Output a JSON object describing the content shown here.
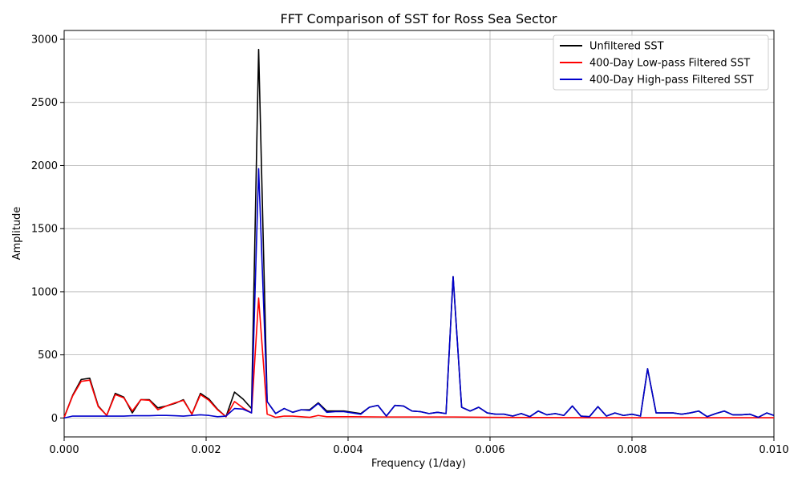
{
  "chart_data": {
    "type": "line",
    "title": "FFT Comparison of SST for Ross Sea Sector",
    "xlabel": "Frequency (1/day)",
    "ylabel": "Amplitude",
    "xlim": [
      0.0,
      0.01
    ],
    "ylim": [
      -150,
      3070
    ],
    "xticks": [
      0.0,
      0.002,
      0.004,
      0.006,
      0.008,
      0.01
    ],
    "xtick_labels": [
      "0.000",
      "0.002",
      "0.004",
      "0.006",
      "0.008",
      "0.010"
    ],
    "yticks": [
      0,
      500,
      1000,
      1500,
      2000,
      2500,
      3000
    ],
    "ytick_labels": [
      "0",
      "500",
      "1000",
      "1500",
      "2000",
      "2500",
      "3000"
    ],
    "grid": true,
    "legend_position": "top-right",
    "series": [
      {
        "name": "Unfiltered SST",
        "color": "#000000",
        "points": [
          [
            0.0,
            5
          ],
          [
            0.00012,
            180
          ],
          [
            0.00024,
            305
          ],
          [
            0.00036,
            315
          ],
          [
            0.00048,
            95
          ],
          [
            0.0006,
            20
          ],
          [
            0.00072,
            195
          ],
          [
            0.00084,
            165
          ],
          [
            0.00096,
            40
          ],
          [
            0.00108,
            145
          ],
          [
            0.0012,
            145
          ],
          [
            0.00132,
            80
          ],
          [
            0.00144,
            95
          ],
          [
            0.00156,
            115
          ],
          [
            0.00168,
            145
          ],
          [
            0.0018,
            30
          ],
          [
            0.00192,
            195
          ],
          [
            0.00204,
            150
          ],
          [
            0.00216,
            70
          ],
          [
            0.00228,
            10
          ],
          [
            0.0024,
            205
          ],
          [
            0.00252,
            150
          ],
          [
            0.00264,
            75
          ],
          [
            0.00274,
            2920
          ],
          [
            0.00286,
            130
          ],
          [
            0.00298,
            35
          ],
          [
            0.0031,
            75
          ],
          [
            0.00322,
            45
          ],
          [
            0.00334,
            65
          ],
          [
            0.00346,
            65
          ],
          [
            0.00358,
            120
          ],
          [
            0.0037,
            55
          ],
          [
            0.00382,
            55
          ],
          [
            0.00394,
            55
          ],
          [
            0.00406,
            45
          ],
          [
            0.00418,
            35
          ],
          [
            0.0043,
            85
          ],
          [
            0.00442,
            100
          ],
          [
            0.00454,
            15
          ],
          [
            0.00466,
            100
          ],
          [
            0.00478,
            95
          ],
          [
            0.0049,
            55
          ],
          [
            0.00502,
            50
          ],
          [
            0.00514,
            35
          ],
          [
            0.00526,
            45
          ],
          [
            0.00538,
            35
          ],
          [
            0.00548,
            1120
          ],
          [
            0.0056,
            85
          ],
          [
            0.00572,
            55
          ],
          [
            0.00584,
            85
          ],
          [
            0.00596,
            40
          ],
          [
            0.00608,
            30
          ],
          [
            0.0062,
            30
          ],
          [
            0.00632,
            15
          ],
          [
            0.00644,
            35
          ],
          [
            0.00656,
            10
          ],
          [
            0.00668,
            55
          ],
          [
            0.0068,
            25
          ],
          [
            0.00692,
            35
          ],
          [
            0.00704,
            20
          ],
          [
            0.00716,
            95
          ],
          [
            0.00728,
            15
          ],
          [
            0.0074,
            10
          ],
          [
            0.00752,
            90
          ],
          [
            0.00764,
            15
          ],
          [
            0.00776,
            40
          ],
          [
            0.00788,
            20
          ],
          [
            0.008,
            30
          ],
          [
            0.00812,
            15
          ],
          [
            0.00822,
            390
          ],
          [
            0.00834,
            40
          ],
          [
            0.00846,
            40
          ],
          [
            0.00858,
            40
          ],
          [
            0.0087,
            30
          ],
          [
            0.00882,
            40
          ],
          [
            0.00894,
            55
          ],
          [
            0.00906,
            10
          ],
          [
            0.00918,
            35
          ],
          [
            0.0093,
            55
          ],
          [
            0.00942,
            25
          ],
          [
            0.00954,
            25
          ],
          [
            0.00966,
            30
          ],
          [
            0.00978,
            5
          ],
          [
            0.0099,
            40
          ],
          [
            0.01,
            20
          ]
        ]
      },
      {
        "name": "400-Day Low-pass Filtered SST",
        "color": "#ff0000",
        "points": [
          [
            0.0,
            5
          ],
          [
            0.00012,
            175
          ],
          [
            0.00024,
            290
          ],
          [
            0.00036,
            300
          ],
          [
            0.00048,
            90
          ],
          [
            0.0006,
            20
          ],
          [
            0.00072,
            185
          ],
          [
            0.00084,
            160
          ],
          [
            0.00096,
            55
          ],
          [
            0.00108,
            145
          ],
          [
            0.0012,
            140
          ],
          [
            0.00132,
            65
          ],
          [
            0.00144,
            95
          ],
          [
            0.00156,
            120
          ],
          [
            0.00168,
            140
          ],
          [
            0.0018,
            30
          ],
          [
            0.00192,
            185
          ],
          [
            0.00204,
            140
          ],
          [
            0.00216,
            65
          ],
          [
            0.00228,
            10
          ],
          [
            0.0024,
            130
          ],
          [
            0.00252,
            80
          ],
          [
            0.00264,
            40
          ],
          [
            0.00274,
            950
          ],
          [
            0.00286,
            30
          ],
          [
            0.00298,
            5
          ],
          [
            0.0031,
            15
          ],
          [
            0.00322,
            15
          ],
          [
            0.00334,
            10
          ],
          [
            0.00346,
            5
          ],
          [
            0.00358,
            20
          ],
          [
            0.0037,
            10
          ],
          [
            0.00382,
            10
          ],
          [
            0.00394,
            10
          ],
          [
            0.00406,
            10
          ],
          [
            0.0045,
            8
          ],
          [
            0.005,
            8
          ],
          [
            0.0055,
            8
          ],
          [
            0.006,
            5
          ],
          [
            0.007,
            3
          ],
          [
            0.008,
            2
          ],
          [
            0.009,
            2
          ],
          [
            0.01,
            2
          ]
        ]
      },
      {
        "name": "400-Day High-pass Filtered SST",
        "color": "#0000cc",
        "points": [
          [
            0.0,
            0
          ],
          [
            0.00012,
            15
          ],
          [
            0.00024,
            15
          ],
          [
            0.00036,
            15
          ],
          [
            0.00048,
            15
          ],
          [
            0.0006,
            15
          ],
          [
            0.00072,
            15
          ],
          [
            0.00084,
            15
          ],
          [
            0.00096,
            18
          ],
          [
            0.00108,
            18
          ],
          [
            0.0012,
            18
          ],
          [
            0.00132,
            20
          ],
          [
            0.00144,
            20
          ],
          [
            0.00156,
            18
          ],
          [
            0.00168,
            15
          ],
          [
            0.0018,
            20
          ],
          [
            0.00192,
            25
          ],
          [
            0.00204,
            20
          ],
          [
            0.00216,
            10
          ],
          [
            0.00228,
            15
          ],
          [
            0.0024,
            75
          ],
          [
            0.00252,
            70
          ],
          [
            0.00264,
            40
          ],
          [
            0.00274,
            1975
          ],
          [
            0.00286,
            130
          ],
          [
            0.00298,
            35
          ],
          [
            0.0031,
            75
          ],
          [
            0.00322,
            45
          ],
          [
            0.00334,
            65
          ],
          [
            0.00346,
            60
          ],
          [
            0.00358,
            115
          ],
          [
            0.0037,
            45
          ],
          [
            0.00382,
            50
          ],
          [
            0.00394,
            50
          ],
          [
            0.00406,
            40
          ],
          [
            0.00418,
            30
          ],
          [
            0.0043,
            85
          ],
          [
            0.00442,
            100
          ],
          [
            0.00454,
            15
          ],
          [
            0.00466,
            100
          ],
          [
            0.00478,
            95
          ],
          [
            0.0049,
            55
          ],
          [
            0.00502,
            50
          ],
          [
            0.00514,
            35
          ],
          [
            0.00526,
            45
          ],
          [
            0.00538,
            35
          ],
          [
            0.00548,
            1120
          ],
          [
            0.0056,
            85
          ],
          [
            0.00572,
            55
          ],
          [
            0.00584,
            85
          ],
          [
            0.00596,
            40
          ],
          [
            0.00608,
            30
          ],
          [
            0.0062,
            30
          ],
          [
            0.00632,
            15
          ],
          [
            0.00644,
            35
          ],
          [
            0.00656,
            10
          ],
          [
            0.00668,
            55
          ],
          [
            0.0068,
            25
          ],
          [
            0.00692,
            35
          ],
          [
            0.00704,
            20
          ],
          [
            0.00716,
            95
          ],
          [
            0.00728,
            15
          ],
          [
            0.0074,
            10
          ],
          [
            0.00752,
            90
          ],
          [
            0.00764,
            15
          ],
          [
            0.00776,
            40
          ],
          [
            0.00788,
            20
          ],
          [
            0.008,
            30
          ],
          [
            0.00812,
            15
          ],
          [
            0.00822,
            390
          ],
          [
            0.00834,
            40
          ],
          [
            0.00846,
            40
          ],
          [
            0.00858,
            40
          ],
          [
            0.0087,
            30
          ],
          [
            0.00882,
            40
          ],
          [
            0.00894,
            55
          ],
          [
            0.00906,
            10
          ],
          [
            0.00918,
            35
          ],
          [
            0.0093,
            55
          ],
          [
            0.00942,
            25
          ],
          [
            0.00954,
            25
          ],
          [
            0.00966,
            30
          ],
          [
            0.00978,
            5
          ],
          [
            0.0099,
            40
          ],
          [
            0.01,
            20
          ]
        ]
      }
    ]
  }
}
